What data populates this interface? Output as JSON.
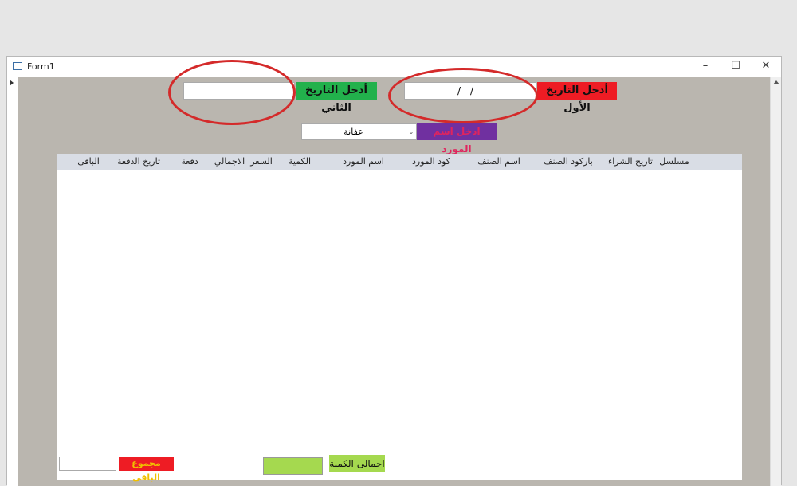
{
  "window": {
    "title": "Form1",
    "minimize": "–",
    "maximize": "☐",
    "close": "✕"
  },
  "filters": {
    "first_date_label": "أدخل التاريخ الأول",
    "first_date_value": "__/__/____",
    "second_date_label": "أدخل التاريخ الثاني",
    "second_date_value": "",
    "supplier_label": "ادخل اسم المورد",
    "supplier_value": "عفانة"
  },
  "table": {
    "columns": [
      "مسلسل",
      "تاريخ الشراء",
      "باركود الصنف",
      "اسم الصنف",
      "كود المورد",
      "اسم المورد",
      "الكمية",
      "السعر",
      "الاجمالي",
      "دفعة",
      "تاريخ الدفعة",
      "الباقى"
    ],
    "rows": []
  },
  "footer": {
    "total_qty_label": "اجمالى الكمية",
    "total_qty_value": "",
    "remaining_label": "مجموع الباقى",
    "remaining_value": ""
  },
  "colors": {
    "red": "#ee1c24",
    "green": "#22b14c",
    "purple": "#7030a0",
    "lime": "#a5d94f",
    "annotation": "#d42a2a"
  }
}
